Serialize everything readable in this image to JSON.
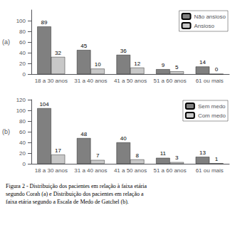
{
  "chart_data": [
    {
      "type": "bar",
      "ylabel": "(a)",
      "categories": [
        "18 a 30 anos",
        "31 a 40 anos",
        "41 a 50 anos",
        "51 a 60 anos",
        "61 ou mais"
      ],
      "series": [
        {
          "name": "Não ansioso",
          "color": "#808080",
          "values": [
            89,
            45,
            36,
            9,
            14
          ]
        },
        {
          "name": "Ansioso",
          "color": "#c8c8c8",
          "values": [
            32,
            10,
            12,
            5,
            0
          ]
        }
      ],
      "ylim": [
        0,
        120
      ],
      "yticks": [
        0,
        20,
        40,
        60,
        80,
        100
      ],
      "grid": false,
      "legend": "upper right",
      "data_labels": true
    },
    {
      "type": "bar",
      "ylabel": "(b)",
      "categories": [
        "18 a 30 anos",
        "31 a 40 anos",
        "41 a 50 anos",
        "51 a 60 anos",
        "61 ou mais"
      ],
      "series": [
        {
          "name": "Sem medo",
          "color": "#808080",
          "values": [
            104,
            48,
            40,
            11,
            13
          ]
        },
        {
          "name": "Com medo",
          "color": "#c8c8c8",
          "values": [
            17,
            7,
            8,
            3,
            1
          ]
        }
      ],
      "ylim": [
        0,
        120
      ],
      "yticks": [
        0,
        20,
        40,
        60,
        80,
        100,
        120
      ],
      "grid": false,
      "legend": "upper right",
      "data_labels": true,
      "annotations": [
        "Figura 2 - Distribuição dos pacientes em relação à faixa etária\nsegundo Corah (a) e Distribuição dos pacientes em relação a\nfaixa etária segundo a Escala de Medo de Gatchel (b)."
      ]
    }
  ]
}
